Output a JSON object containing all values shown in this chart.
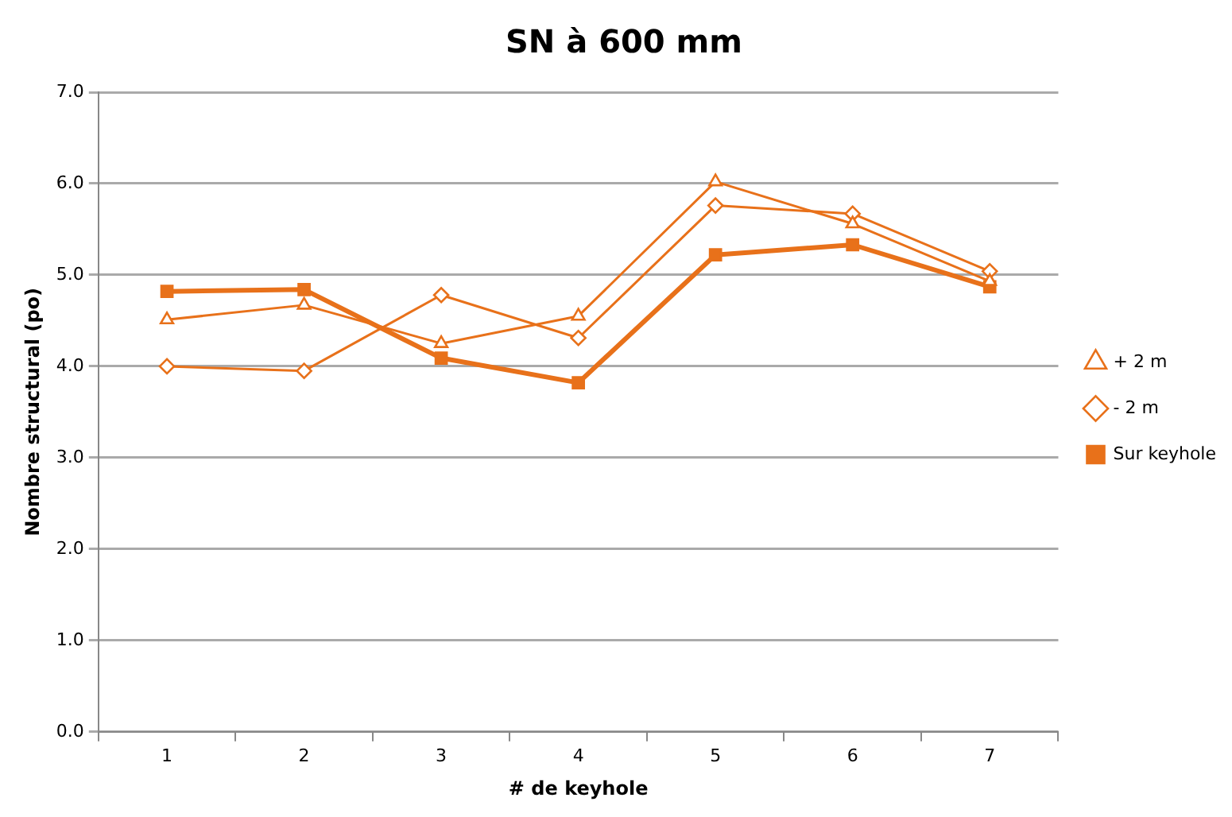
{
  "chart_data": {
    "type": "line",
    "title": "SN à 600 mm",
    "xlabel": "# de keyhole",
    "ylabel": "Nombre structural (po)",
    "categories": [
      "1",
      "2",
      "3",
      "4",
      "5",
      "6",
      "7"
    ],
    "series": [
      {
        "name": "Sur keyhole",
        "color": "#e8711a",
        "marker": "square",
        "values": [
          4.82,
          4.84,
          4.09,
          3.82,
          5.22,
          5.33,
          4.87
        ]
      },
      {
        "name": "- 2 m",
        "color": "#e8711a",
        "marker": "diamond",
        "values": [
          4.0,
          3.95,
          4.78,
          4.31,
          5.76,
          5.67,
          5.04
        ]
      },
      {
        "name": "+ 2 m",
        "color": "#e8711a",
        "marker": "triangle",
        "values": [
          4.51,
          4.67,
          4.25,
          4.55,
          6.02,
          5.56,
          4.93
        ]
      }
    ],
    "ylim": [
      0,
      7
    ],
    "yticks": [
      {
        "value": 0,
        "label": "0.0"
      },
      {
        "value": 1,
        "label": "1.0"
      },
      {
        "value": 2,
        "label": "2.0"
      },
      {
        "value": 3,
        "label": "3.0"
      },
      {
        "value": 4,
        "label": "4.0"
      },
      {
        "value": 5,
        "label": "5.0"
      },
      {
        "value": 6,
        "label": "6.0"
      },
      {
        "value": 7,
        "label": "7.0"
      }
    ],
    "grid": "y",
    "legend": "right",
    "line_style": "solid"
  }
}
